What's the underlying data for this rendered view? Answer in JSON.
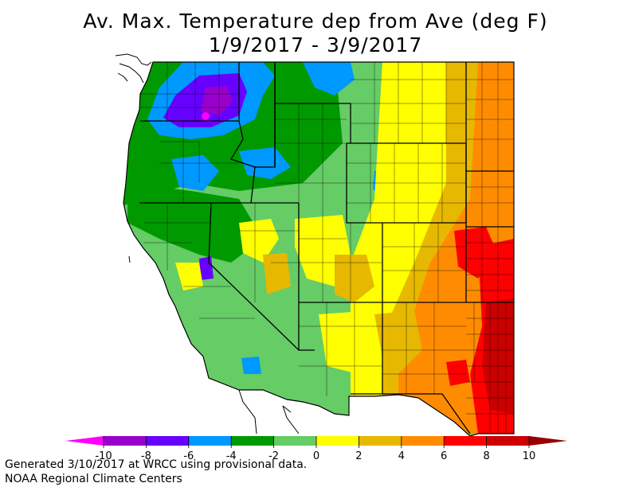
{
  "title_line1": "Av. Max. Temperature dep from Ave (deg F)",
  "title_line2": "1/9/2017 - 3/9/2017",
  "footer_line1": "Generated 3/10/2017 at WRCC using provisional data.",
  "footer_line2": "NOAA Regional Climate Centers",
  "legend": {
    "bins": [
      {
        "color": "#ff00ff"
      },
      {
        "color": "#9900cc"
      },
      {
        "color": "#6600ff"
      },
      {
        "color": "#0099ff"
      },
      {
        "color": "#009900"
      },
      {
        "color": "#66cc66"
      },
      {
        "color": "#ffff00"
      },
      {
        "color": "#e6b800"
      },
      {
        "color": "#ff8c00"
      },
      {
        "color": "#ff0000"
      },
      {
        "color": "#cc0000"
      },
      {
        "color": "#990000"
      }
    ],
    "tick_labels": [
      "-10",
      "-8",
      "-6",
      "-4",
      "-2",
      "0",
      "2",
      "4",
      "6",
      "8",
      "10"
    ]
  },
  "map_colors": {
    "ocean": "#ffffff",
    "boundary": "#000000",
    "land_base": "#66cc66"
  }
}
